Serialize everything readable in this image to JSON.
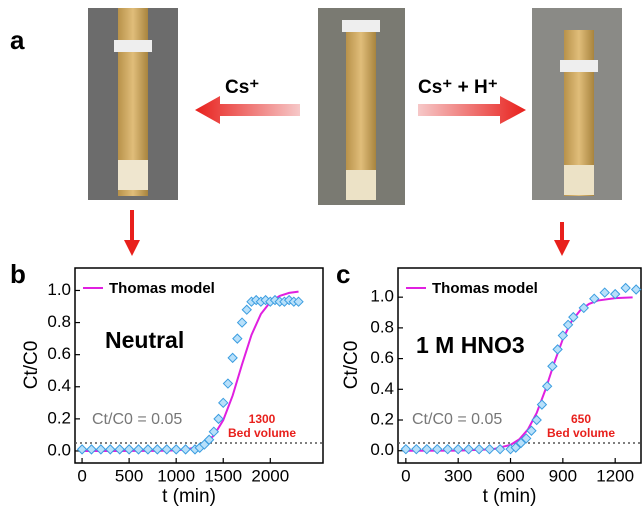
{
  "figure": {
    "panel_labels": [
      "a",
      "b",
      "c"
    ],
    "arrow_labels": [
      "Cs⁺",
      "Cs⁺ + H⁺"
    ]
  },
  "chart_data": [
    {
      "type": "scatter-line",
      "title": "Neutral",
      "x_label": "t (min)",
      "y_label": "Ct/C0",
      "xlim": [
        -75,
        2560
      ],
      "ylim": [
        -0.075,
        1.14
      ],
      "xticks": [
        0,
        500,
        1000,
        1500,
        2000
      ],
      "yticks": [
        {
          "value": 0,
          "label": "0.0"
        },
        {
          "value": 0.2,
          "label": "0.2"
        },
        {
          "value": 0.4,
          "label": "0.4"
        },
        {
          "value": 0.6,
          "label": "0.6"
        },
        {
          "value": 0.8,
          "label": "0.8"
        },
        {
          "value": 1,
          "label": "1.0"
        }
      ],
      "threshold": 0.05,
      "threshold_label": "Ct/C0 = 0.05",
      "bed_volume_value": "1300",
      "bed_volume_label": "Bed volume",
      "series": [
        {
          "name": "Thomas model",
          "color": "#e020e0",
          "kind": "line",
          "x": [
            0,
            400,
            800,
            1000,
            1100,
            1200,
            1300,
            1400,
            1500,
            1600,
            1700,
            1800,
            1900,
            2000,
            2100,
            2200,
            2300
          ],
          "values": [
            0,
            0,
            0.0009,
            0.004,
            0.0096,
            0.021,
            0.046,
            0.096,
            0.192,
            0.345,
            0.54,
            0.723,
            0.853,
            0.928,
            0.966,
            0.985,
            0.993
          ]
        },
        {
          "color": "#3b9de0",
          "kind": "points",
          "x": [
            0,
            100,
            200,
            300,
            400,
            500,
            600,
            700,
            800,
            900,
            1000,
            1100,
            1200,
            1250,
            1300,
            1350,
            1400,
            1450,
            1500,
            1550,
            1600,
            1650,
            1700,
            1750,
            1800,
            1850,
            1900,
            1950,
            2000,
            2050,
            2100,
            2150,
            2200,
            2250,
            2300
          ],
          "values": [
            0.01,
            0.01,
            0.01,
            0.01,
            0.01,
            0.01,
            0.01,
            0.01,
            0.01,
            0.01,
            0.01,
            0.01,
            0.01,
            0.02,
            0.04,
            0.07,
            0.12,
            0.2,
            0.3,
            0.42,
            0.58,
            0.7,
            0.8,
            0.88,
            0.93,
            0.94,
            0.93,
            0.94,
            0.93,
            0.94,
            0.93,
            0.93,
            0.94,
            0.93,
            0.93
          ]
        }
      ]
    },
    {
      "type": "scatter-line",
      "title": "1 M HNO3",
      "x_label": "t (min)",
      "y_label": "Ct/C0",
      "xlim": [
        -45,
        1348
      ],
      "ylim": [
        -0.08,
        1.19
      ],
      "xticks": [
        0,
        300,
        600,
        900,
        1200
      ],
      "yticks": [
        {
          "value": 0,
          "label": "0.0"
        },
        {
          "value": 0.2,
          "label": "0.2"
        },
        {
          "value": 0.4,
          "label": "0.4"
        },
        {
          "value": 0.6,
          "label": "0.6"
        },
        {
          "value": 0.8,
          "label": "0.8"
        },
        {
          "value": 1,
          "label": "1.0"
        }
      ],
      "threshold": 0.05,
      "threshold_label": "Ct/C0 = 0.05",
      "bed_volume_value": "650",
      "bed_volume_label": "Bed volume",
      "series": [
        {
          "name": "Thomas model",
          "color": "#e020e0",
          "kind": "line",
          "x": [
            0,
            300,
            500,
            600,
            650,
            700,
            750,
            800,
            850,
            900,
            950,
            1000,
            1050,
            1100,
            1200,
            1300
          ],
          "values": [
            0,
            0.0006,
            0.0098,
            0.038,
            0.074,
            0.139,
            0.246,
            0.397,
            0.57,
            0.727,
            0.843,
            0.915,
            0.956,
            0.978,
            0.994,
            0.999
          ]
        },
        {
          "color": "#3b9de0",
          "kind": "points",
          "x": [
            0,
            60,
            120,
            180,
            240,
            300,
            360,
            420,
            480,
            540,
            600,
            630,
            660,
            690,
            720,
            750,
            780,
            810,
            840,
            870,
            900,
            930,
            960,
            1020,
            1080,
            1140,
            1200,
            1260,
            1320
          ],
          "values": [
            0.01,
            0.01,
            0.01,
            0.01,
            0.01,
            0.01,
            0.01,
            0.01,
            0.01,
            0.01,
            0.01,
            0.02,
            0.05,
            0.08,
            0.13,
            0.2,
            0.3,
            0.42,
            0.55,
            0.66,
            0.75,
            0.82,
            0.87,
            0.93,
            0.99,
            1.03,
            1.02,
            1.06,
            1.05
          ]
        }
      ]
    }
  ]
}
